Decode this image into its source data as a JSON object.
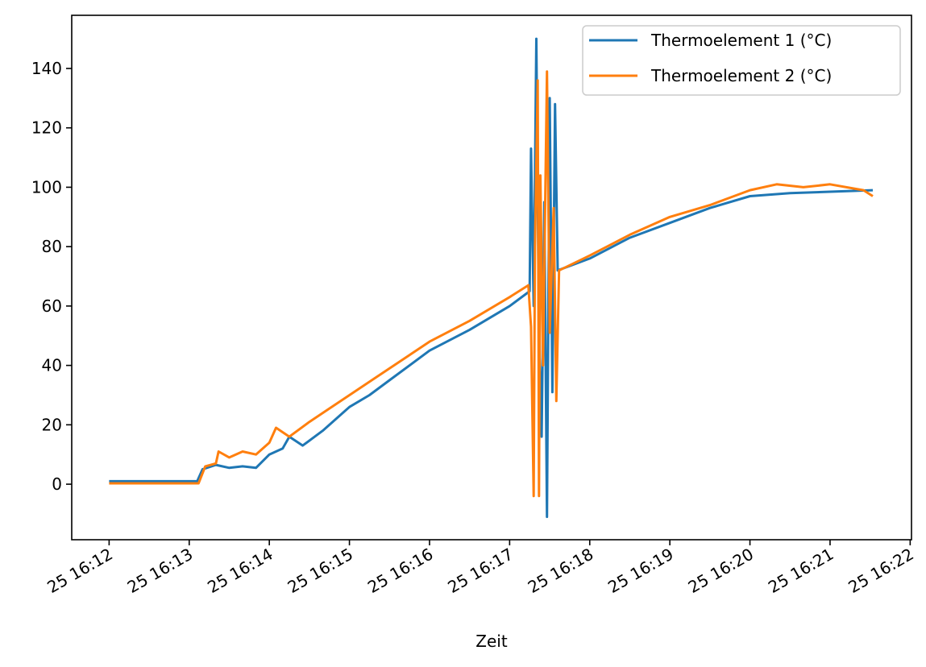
{
  "chart_data": {
    "type": "line",
    "title": "",
    "xlabel": "Zeit",
    "ylabel": "",
    "xlim": [
      "16:11:32",
      "16:22:01"
    ],
    "ylim": [
      -18.7,
      157.9
    ],
    "grid": false,
    "legend_placement": "upper right",
    "yticks": [
      0,
      20,
      40,
      60,
      80,
      100,
      120,
      140
    ],
    "xticks": [
      {
        "t": "16:12:00",
        "label": "25 16:12"
      },
      {
        "t": "16:13:00",
        "label": "25 16:13"
      },
      {
        "t": "16:14:00",
        "label": "25 16:14"
      },
      {
        "t": "16:15:00",
        "label": "25 16:15"
      },
      {
        "t": "16:16:00",
        "label": "25 16:16"
      },
      {
        "t": "16:17:00",
        "label": "25 16:17"
      },
      {
        "t": "16:18:00",
        "label": "25 16:18"
      },
      {
        "t": "16:19:00",
        "label": "25 16:19"
      },
      {
        "t": "16:20:00",
        "label": "25 16:20"
      },
      {
        "t": "16:21:00",
        "label": "25 16:21"
      },
      {
        "t": "16:22:00",
        "label": "25 16:22"
      }
    ],
    "series": [
      {
        "name": "Thermoelement 1 (°C)",
        "color": "#1f77b4",
        "points": [
          [
            "16:12:00",
            1
          ],
          [
            "16:13:06",
            1
          ],
          [
            "16:13:10",
            5
          ],
          [
            "16:13:20",
            6.5
          ],
          [
            "16:13:30",
            5.5
          ],
          [
            "16:13:40",
            6
          ],
          [
            "16:13:50",
            5.5
          ],
          [
            "16:14:00",
            10
          ],
          [
            "16:14:10",
            12
          ],
          [
            "16:14:15",
            16
          ],
          [
            "16:14:25",
            13
          ],
          [
            "16:14:40",
            18
          ],
          [
            "16:15:00",
            26
          ],
          [
            "16:15:15",
            30
          ],
          [
            "16:15:30",
            35
          ],
          [
            "16:16:00",
            45
          ],
          [
            "16:16:30",
            52
          ],
          [
            "16:17:00",
            60
          ],
          [
            "16:17:15",
            65
          ],
          [
            "16:17:16",
            113
          ],
          [
            "16:17:18",
            60
          ],
          [
            "16:17:20",
            150
          ],
          [
            "16:17:22",
            50
          ],
          [
            "16:17:24",
            16
          ],
          [
            "16:17:26",
            95
          ],
          [
            "16:17:28",
            -11
          ],
          [
            "16:17:30",
            130
          ],
          [
            "16:17:32",
            31
          ],
          [
            "16:17:34",
            128
          ],
          [
            "16:17:36",
            72
          ],
          [
            "16:18:00",
            76
          ],
          [
            "16:18:30",
            83
          ],
          [
            "16:19:00",
            88
          ],
          [
            "16:19:30",
            93
          ],
          [
            "16:20:00",
            97
          ],
          [
            "16:20:30",
            98
          ],
          [
            "16:21:00",
            98.5
          ],
          [
            "16:21:32",
            99
          ]
        ]
      },
      {
        "name": "Thermoelement 2 (°C)",
        "color": "#ff7f0e",
        "points": [
          [
            "16:12:00",
            0.3
          ],
          [
            "16:13:07",
            0.3
          ],
          [
            "16:13:12",
            6
          ],
          [
            "16:13:20",
            7
          ],
          [
            "16:13:22",
            11
          ],
          [
            "16:13:30",
            9
          ],
          [
            "16:13:40",
            11
          ],
          [
            "16:13:50",
            10
          ],
          [
            "16:14:00",
            14
          ],
          [
            "16:14:05",
            19
          ],
          [
            "16:14:15",
            16
          ],
          [
            "16:14:30",
            21
          ],
          [
            "16:15:00",
            30
          ],
          [
            "16:15:20",
            36
          ],
          [
            "16:16:00",
            48
          ],
          [
            "16:16:30",
            55
          ],
          [
            "16:17:00",
            63
          ],
          [
            "16:17:14",
            67
          ],
          [
            "16:17:16",
            53
          ],
          [
            "16:17:18",
            -4
          ],
          [
            "16:17:19",
            80
          ],
          [
            "16:17:21",
            136
          ],
          [
            "16:17:22",
            -4
          ],
          [
            "16:17:23",
            104
          ],
          [
            "16:17:25",
            40
          ],
          [
            "16:17:28",
            139
          ],
          [
            "16:17:30",
            51
          ],
          [
            "16:17:33",
            93
          ],
          [
            "16:17:35",
            28
          ],
          [
            "16:17:37",
            72
          ],
          [
            "16:18:00",
            77
          ],
          [
            "16:18:30",
            84
          ],
          [
            "16:19:00",
            90
          ],
          [
            "16:19:30",
            94
          ],
          [
            "16:20:00",
            99
          ],
          [
            "16:20:20",
            101
          ],
          [
            "16:20:40",
            100
          ],
          [
            "16:21:00",
            101
          ],
          [
            "16:21:25",
            99
          ],
          [
            "16:21:32",
            97
          ]
        ]
      }
    ]
  }
}
